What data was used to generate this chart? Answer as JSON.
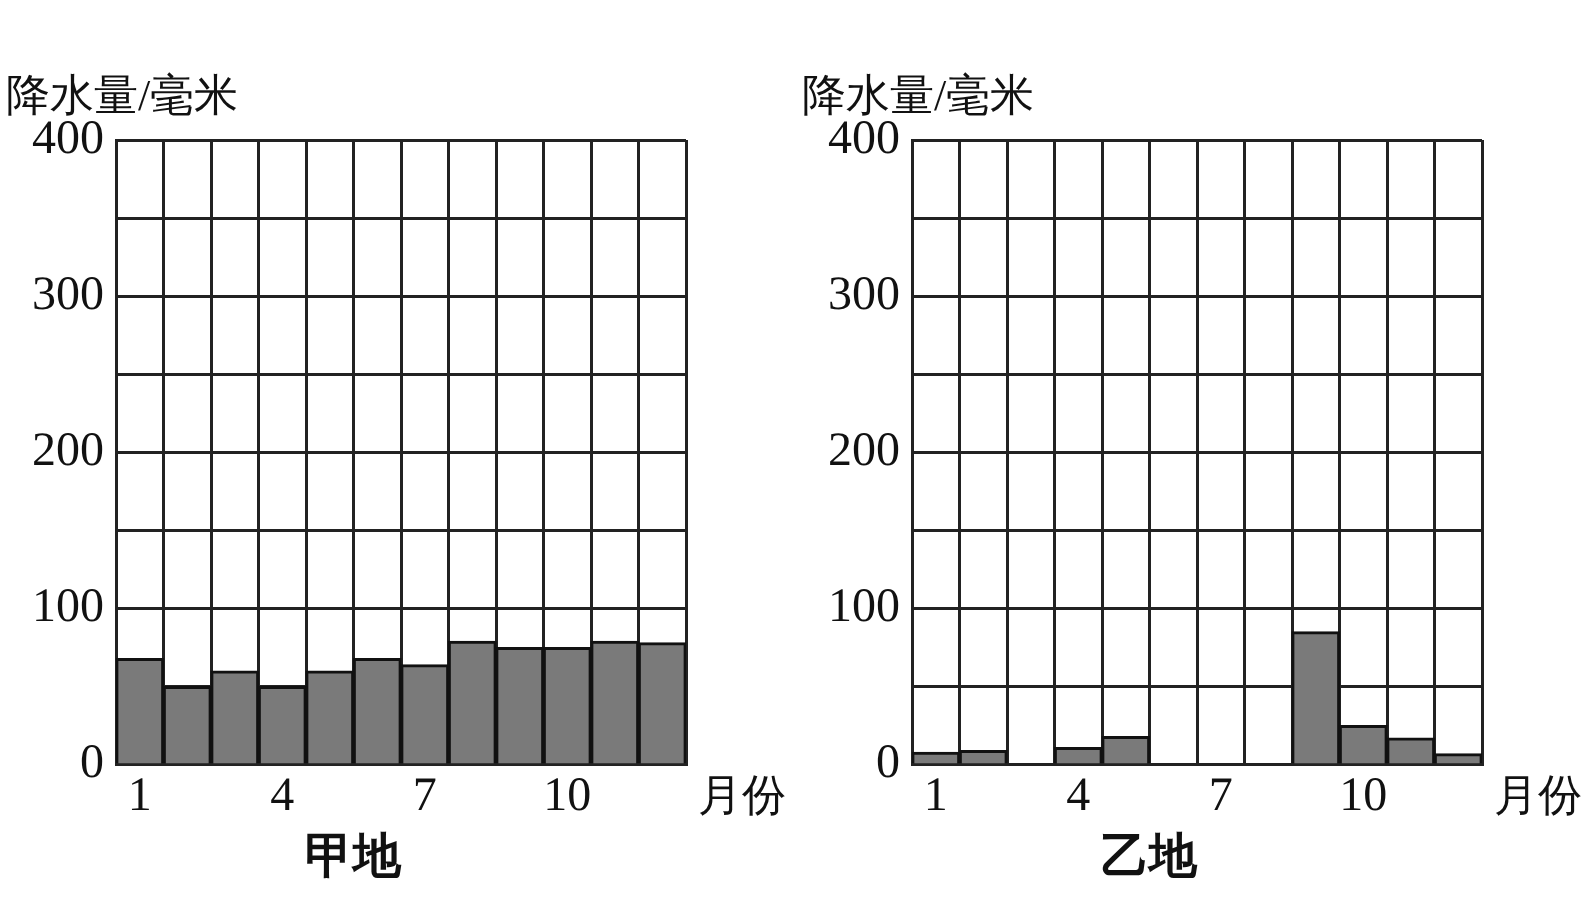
{
  "chart_data": [
    {
      "type": "bar",
      "title": "甲地",
      "ylabel": "降水量/毫米",
      "xlabel": "月份",
      "categories": [
        "1",
        null,
        null,
        "4",
        null,
        null,
        "7",
        null,
        null,
        "10",
        null,
        null
      ],
      "values": [
        68,
        50,
        60,
        50,
        60,
        68,
        64,
        79,
        75,
        75,
        79,
        78
      ],
      "color": "#7a7a7a",
      "ylim": [
        0,
        400
      ],
      "yticks": [
        0,
        {
          "value": 50,
          "label": null
        },
        100,
        {
          "value": 150,
          "label": null
        },
        200,
        {
          "value": 250,
          "label": null
        },
        300,
        {
          "value": 350,
          "label": null
        },
        400
      ],
      "grid": true
    },
    {
      "type": "bar",
      "title": "乙地",
      "ylabel": "降水量/毫米",
      "xlabel": "月份",
      "categories": [
        "1",
        null,
        null,
        "4",
        null,
        null,
        "7",
        null,
        null,
        "10",
        null,
        null
      ],
      "values": [
        8,
        9,
        0,
        11,
        18,
        0,
        0,
        0,
        85,
        25,
        17,
        7
      ],
      "color": "#7a7a7a",
      "ylim": [
        0,
        400
      ],
      "yticks": [
        0,
        {
          "value": 50,
          "label": null
        },
        100,
        {
          "value": 150,
          "label": null
        },
        200,
        {
          "value": 250,
          "label": null
        },
        300,
        {
          "value": 350,
          "label": null
        },
        400
      ],
      "grid": true
    }
  ]
}
